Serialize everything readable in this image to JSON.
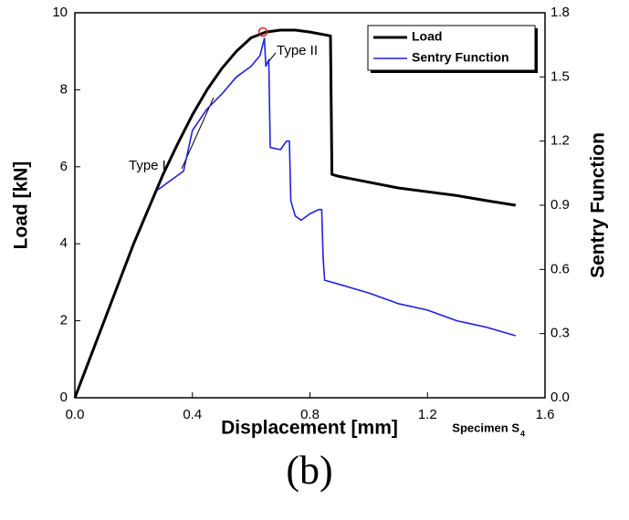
{
  "chart_data": {
    "type": "line",
    "xlabel": "Displacement [mm]",
    "ylabel": "Load [kN]",
    "y2label": "Sentry Function",
    "xlim": [
      0,
      1.6
    ],
    "xticks": [
      {
        "value": 0,
        "label": "0.0"
      },
      0.4,
      0.8,
      1.2,
      1.6
    ],
    "ylim": [
      0,
      10
    ],
    "yticks": [
      0,
      2,
      4,
      6,
      8,
      10
    ],
    "y2lim": [
      0,
      1.8
    ],
    "y2ticks": [
      {
        "value": 0,
        "label": "0.0"
      },
      0.3,
      0.6,
      0.9,
      1.2,
      1.5,
      1.8
    ],
    "legend": "top-right",
    "series": [
      {
        "name": "Load",
        "color": "#000000",
        "x": [
          0,
          0.05,
          0.1,
          0.15,
          0.2,
          0.25,
          0.3,
          0.35,
          0.4,
          0.45,
          0.5,
          0.55,
          0.6,
          0.65,
          0.7,
          0.75,
          0.8,
          0.87,
          0.875,
          0.9,
          1.0,
          1.1,
          1.2,
          1.3,
          1.4,
          1.5
        ],
        "values": [
          0,
          1,
          2,
          3,
          4,
          4.9,
          5.8,
          6.6,
          7.35,
          8,
          8.55,
          9,
          9.35,
          9.5,
          9.55,
          9.55,
          9.5,
          9.4,
          5.8,
          5.75,
          5.6,
          5.45,
          5.35,
          5.25,
          5.12,
          5
        ]
      },
      {
        "name": "Sentry Function",
        "color": "#1f1fe0",
        "axis": "y2",
        "x": [
          0.28,
          0.37,
          0.4,
          0.45,
          0.5,
          0.55,
          0.6,
          0.63,
          0.645,
          0.65,
          0.66,
          0.665,
          0.7,
          0.72,
          0.73,
          0.735,
          0.75,
          0.77,
          0.8,
          0.83,
          0.84,
          0.845,
          0.85,
          0.9,
          1.0,
          1.1,
          1.2,
          1.3,
          1.4,
          1.5
        ],
        "values": [
          0.97,
          1.06,
          1.25,
          1.35,
          1.42,
          1.5,
          1.55,
          1.6,
          1.68,
          1.55,
          1.58,
          1.17,
          1.16,
          1.2,
          1.2,
          0.92,
          0.85,
          0.83,
          0.86,
          0.88,
          0.88,
          0.65,
          0.55,
          0.53,
          0.49,
          0.44,
          0.41,
          0.36,
          0.33,
          0.29
        ]
      }
    ],
    "peak_marker": {
      "x": 0.64,
      "y": 9.5,
      "color": "#d62020"
    },
    "annotations": [
      "Type I",
      "Type II"
    ],
    "specimen": {
      "text": "Specimen S",
      "subscript": "4"
    },
    "caption": "(b)"
  }
}
